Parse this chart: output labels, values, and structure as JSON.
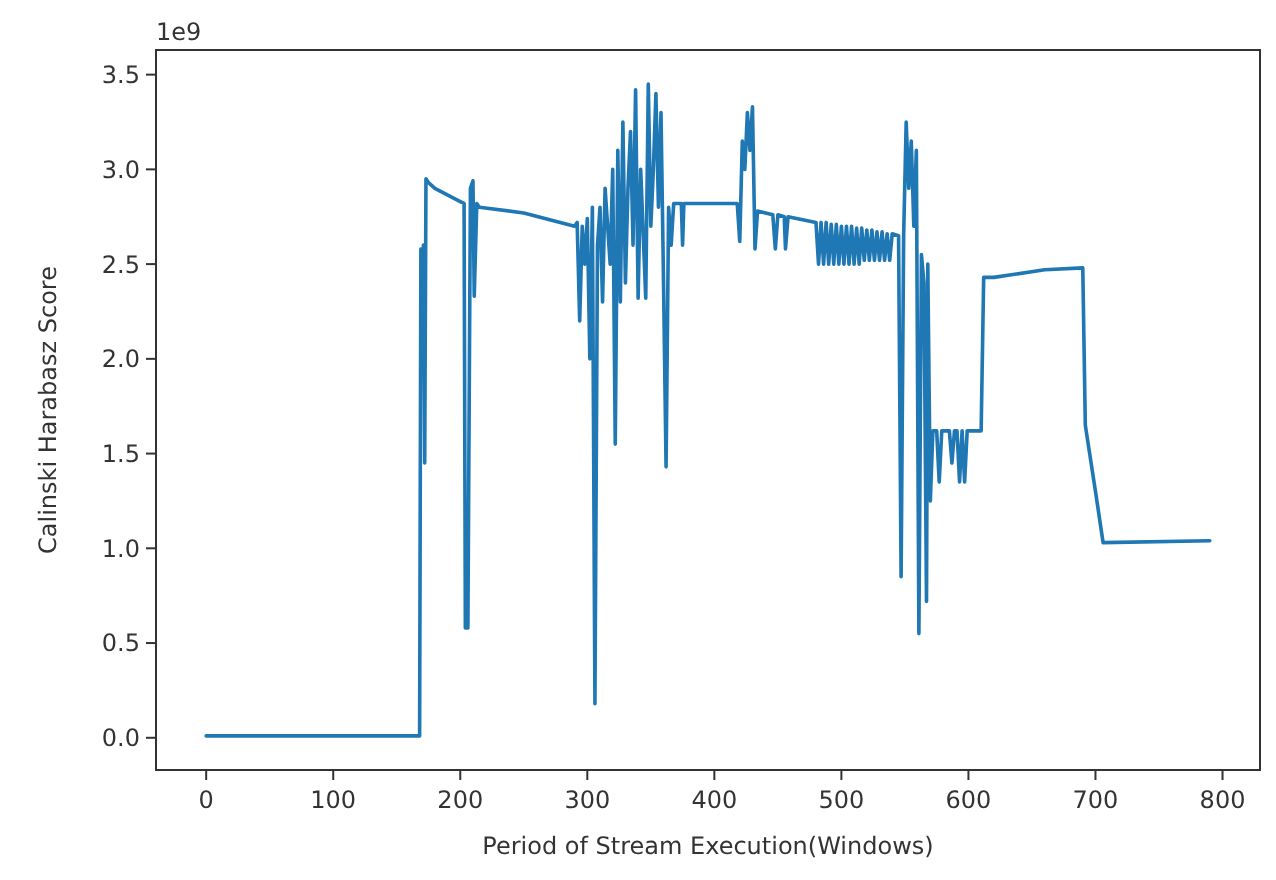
{
  "chart_data": {
    "type": "line",
    "xlabel": "Period of Stream Execution(Windows)",
    "ylabel": "Calinski Harabasz Score",
    "annotations": [
      "1e9"
    ],
    "xlim": [
      -39.5,
      829.5
    ],
    "xticks": [
      0,
      100,
      200,
      300,
      400,
      500,
      600,
      700,
      800
    ],
    "ylim": [
      -0.17,
      3.63
    ],
    "yticks": [
      {
        "value": 0,
        "label": "0.0"
      },
      0.5,
      {
        "value": 1,
        "label": "1.0"
      },
      1.5,
      {
        "value": 2,
        "label": "2.0"
      },
      2.5,
      {
        "value": 3,
        "label": "3.0"
      },
      3.5
    ],
    "grid": false,
    "marker": "none",
    "line_style": "solid",
    "series": [
      {
        "color": "#1f77b4",
        "x": [
          0,
          168,
          169,
          170,
          171,
          172,
          173,
          175,
          180,
          200,
          203,
          204,
          206,
          208,
          210,
          211,
          213,
          215,
          250,
          290,
          292,
          294,
          296,
          298,
          300,
          302,
          304,
          306,
          308,
          310,
          312,
          314,
          318,
          320,
          322,
          324,
          326,
          328,
          330,
          332,
          334,
          336,
          338,
          340,
          342,
          346,
          348,
          350,
          352,
          354,
          356,
          358,
          360,
          362,
          364,
          366,
          368,
          374,
          375,
          376,
          400,
          418,
          420,
          422,
          424,
          426,
          428,
          430,
          432,
          434,
          446,
          448,
          450,
          455,
          456,
          458,
          480,
          482,
          484,
          486,
          488,
          490,
          492,
          494,
          496,
          498,
          500,
          502,
          504,
          506,
          508,
          510,
          512,
          514,
          516,
          518,
          520,
          522,
          524,
          526,
          528,
          530,
          532,
          534,
          536,
          538,
          540,
          545,
          547,
          549,
          551,
          553,
          555,
          557,
          559,
          561,
          563,
          565,
          567,
          568,
          570,
          572,
          575,
          577,
          579,
          585,
          587,
          589,
          591,
          593,
          595,
          597,
          599,
          610,
          612,
          620,
          660,
          690,
          692,
          700,
          706,
          790
        ],
        "values": [
          0.01,
          0.01,
          2.58,
          2.1,
          2.6,
          1.45,
          2.95,
          2.93,
          2.9,
          2.83,
          2.82,
          0.58,
          0.58,
          2.9,
          2.94,
          2.33,
          2.82,
          2.8,
          2.77,
          2.7,
          2.72,
          2.2,
          2.7,
          2.5,
          2.74,
          2,
          2.8,
          0.18,
          2.6,
          2.8,
          2.3,
          2.9,
          2.5,
          3,
          1.55,
          3.1,
          2.3,
          3.25,
          2.4,
          2.9,
          3.2,
          2.6,
          3.42,
          2.32,
          3,
          2.32,
          3.45,
          2.7,
          3,
          3.4,
          2.8,
          3.3,
          2.4,
          1.43,
          2.8,
          2.6,
          2.82,
          2.82,
          2.6,
          2.82,
          2.82,
          2.82,
          2.62,
          3.15,
          3,
          3.3,
          3.1,
          3.33,
          2.58,
          2.78,
          2.76,
          2.58,
          2.76,
          2.75,
          2.58,
          2.75,
          2.72,
          2.5,
          2.72,
          2.5,
          2.72,
          2.5,
          2.71,
          2.5,
          2.71,
          2.5,
          2.7,
          2.5,
          2.7,
          2.5,
          2.7,
          2.5,
          2.69,
          2.5,
          2.69,
          2.52,
          2.68,
          2.52,
          2.68,
          2.52,
          2.67,
          2.52,
          2.67,
          2.52,
          2.66,
          2.52,
          2.66,
          2.65,
          0.85,
          2.65,
          3.25,
          2.9,
          3.15,
          2.7,
          3.1,
          0.55,
          2.55,
          2.4,
          0.72,
          2.5,
          1.25,
          1.62,
          1.62,
          1.35,
          1.62,
          1.62,
          1.45,
          1.62,
          1.62,
          1.35,
          1.62,
          1.35,
          1.62,
          1.62,
          2.43,
          2.43,
          2.47,
          2.48,
          1.65,
          1.3,
          1.03,
          1.04
        ]
      }
    ]
  }
}
